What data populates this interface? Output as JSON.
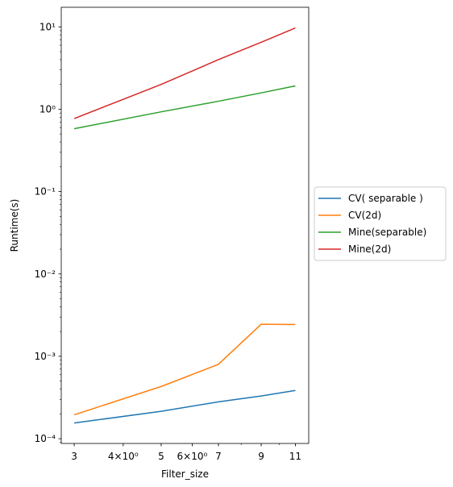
{
  "chart_data": {
    "type": "line",
    "xlabel": "Filter_size",
    "ylabel": "Runtime(s)",
    "xscale": "log",
    "yscale": "log",
    "xlim": [
      2.78,
      11.9
    ],
    "ylim": [
      8.75e-05,
      17.3
    ],
    "x": [
      3,
      5,
      7,
      9,
      11
    ],
    "x_ticks": [
      {
        "value": 3,
        "label": "3"
      },
      {
        "value": 4,
        "label": "4×10⁰"
      },
      {
        "value": 5,
        "label": "5"
      },
      {
        "value": 6,
        "label": "6×10⁰"
      },
      {
        "value": 7,
        "label": "7"
      },
      {
        "value": 9,
        "label": "9"
      },
      {
        "value": 11,
        "label": "11"
      }
    ],
    "y_ticks": [
      {
        "value": 0.0001,
        "label": "10⁻⁴"
      },
      {
        "value": 0.001,
        "label": "10⁻³"
      },
      {
        "value": 0.01,
        "label": "10⁻²"
      },
      {
        "value": 0.1,
        "label": "10⁻¹"
      },
      {
        "value": 1,
        "label": "10⁰"
      },
      {
        "value": 10,
        "label": "10¹"
      }
    ],
    "grid": false,
    "legend_position": "outside-right",
    "series": [
      {
        "name": "CV( separable )",
        "color": "#1f77b4",
        "values": [
          0.000155,
          0.000215,
          0.00028,
          0.00033,
          0.000385
        ]
      },
      {
        "name": "CV(2d)",
        "color": "#ff7f0e",
        "values": [
          0.000195,
          0.00043,
          0.0008,
          0.00245,
          0.00243
        ]
      },
      {
        "name": "Mine(separable)",
        "color": "#2ca02c",
        "values": [
          0.58,
          0.93,
          1.25,
          1.58,
          1.92
        ]
      },
      {
        "name": "Mine(2d)",
        "color": "#d62728",
        "values": [
          0.77,
          2.0,
          4.0,
          6.5,
          9.7
        ]
      }
    ]
  }
}
